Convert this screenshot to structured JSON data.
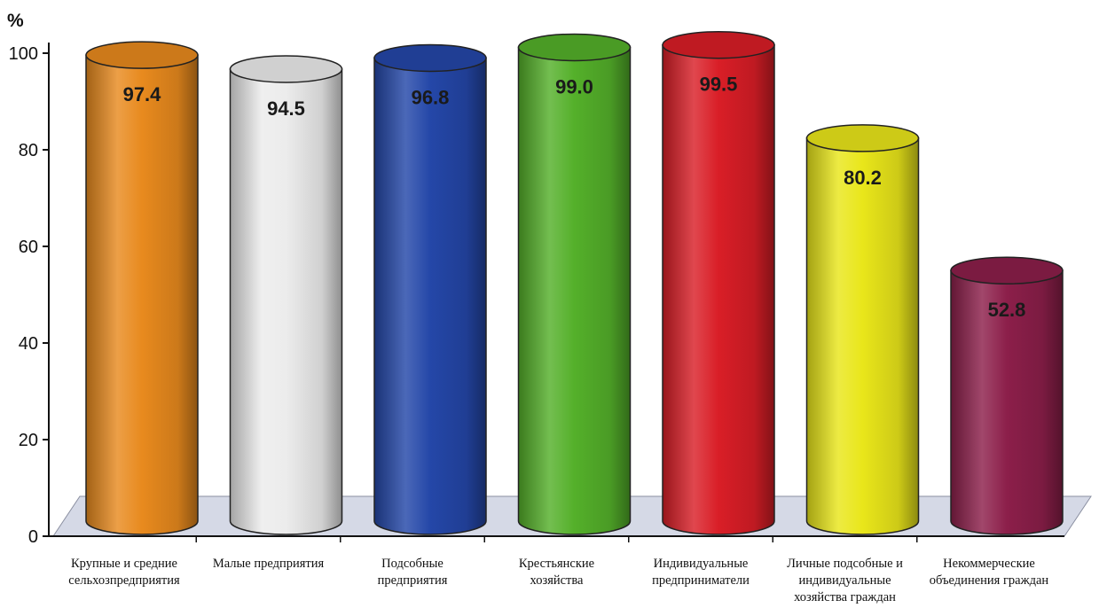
{
  "chart_data": {
    "type": "bar",
    "ylabel": "%",
    "ylim": [
      0,
      100
    ],
    "yticks": [
      0,
      20,
      40,
      60,
      80,
      100
    ],
    "categories": [
      [
        "Крупные     и средние",
        "сельхозпредприятия"
      ],
      [
        "Малые предприятия"
      ],
      [
        "Подсобные",
        "предприятия"
      ],
      [
        "Крестьянские",
        "хозяйства"
      ],
      [
        "Индивидуальные",
        "предприниматели"
      ],
      [
        "Личные подсобные и",
        "индивидуальные",
        "хозяйства граждан"
      ],
      [
        "Некоммерческие",
        "объединения граждан"
      ]
    ],
    "values": [
      97.4,
      94.5,
      96.8,
      99.0,
      99.5,
      80.2,
      52.8
    ],
    "value_labels": [
      "97.4",
      "94.5",
      "96.8",
      "99.0",
      "99.5",
      "80.2",
      "52.8"
    ],
    "colors": [
      "#e88a1e",
      "#ececec",
      "#2447a8",
      "#54b02a",
      "#d91e27",
      "#e9e61a",
      "#8c1f4a"
    ],
    "grid": false,
    "style": "3d-cylinder"
  }
}
